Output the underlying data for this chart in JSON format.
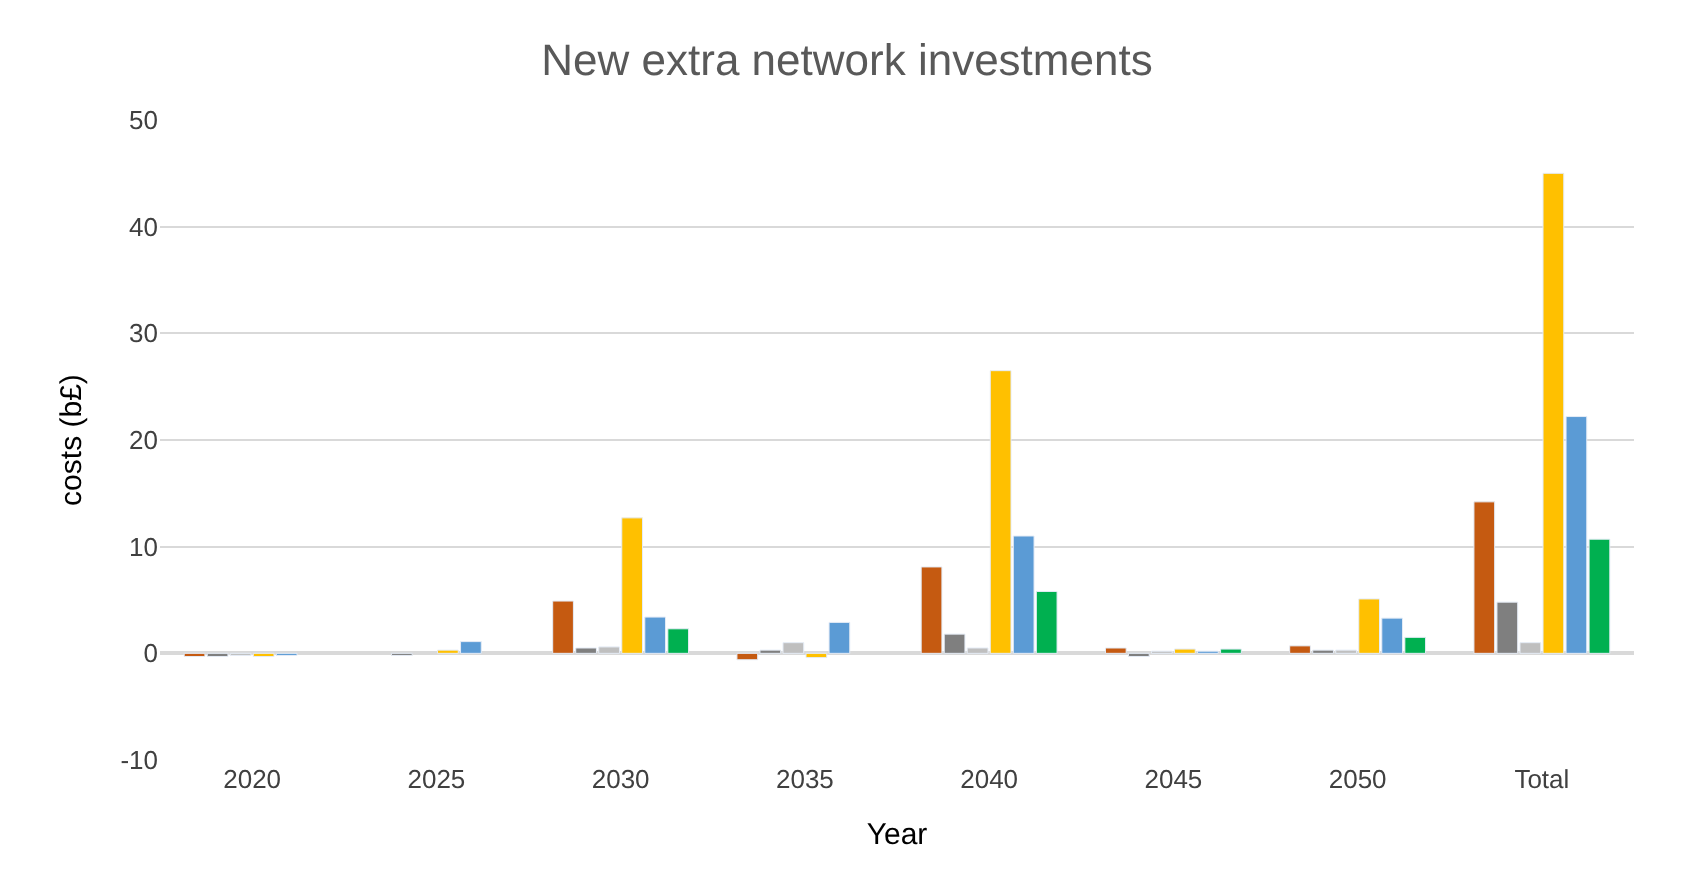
{
  "chart_data": {
    "type": "bar",
    "title": "New extra network investments",
    "xlabel": "Year",
    "ylabel": "costs (b£)",
    "categories": [
      "2020",
      "2025",
      "2030",
      "2035",
      "2040",
      "2045",
      "2050",
      "Total"
    ],
    "series": [
      {
        "color": "#c55a11",
        "values": [
          -0.3,
          null,
          4.9,
          -0.6,
          8.1,
          0.5,
          0.7,
          14.2
        ]
      },
      {
        "color": "#7f7f7f",
        "values": [
          -0.3,
          -0.2,
          0.5,
          0.3,
          1.8,
          -0.3,
          0.3,
          4.8
        ]
      },
      {
        "color": "#bfbfbf",
        "values": [
          -0.2,
          null,
          0.6,
          1.0,
          0.5,
          0.2,
          0.3,
          1.0
        ]
      },
      {
        "color": "#ffc000",
        "values": [
          -0.3,
          0.3,
          12.7,
          -0.4,
          26.5,
          0.4,
          5.1,
          45.0
        ]
      },
      {
        "color": "#5b9bd5",
        "values": [
          -0.2,
          1.1,
          3.4,
          2.9,
          11.0,
          0.2,
          3.3,
          22.2
        ]
      },
      {
        "color": "#00b050",
        "values": [
          null,
          null,
          2.3,
          null,
          5.8,
          0.4,
          1.5,
          10.7
        ]
      }
    ],
    "ylim": [
      -10,
      50
    ],
    "yticks": [
      -10,
      0,
      10,
      20,
      30,
      40,
      50
    ],
    "grid": "y"
  }
}
